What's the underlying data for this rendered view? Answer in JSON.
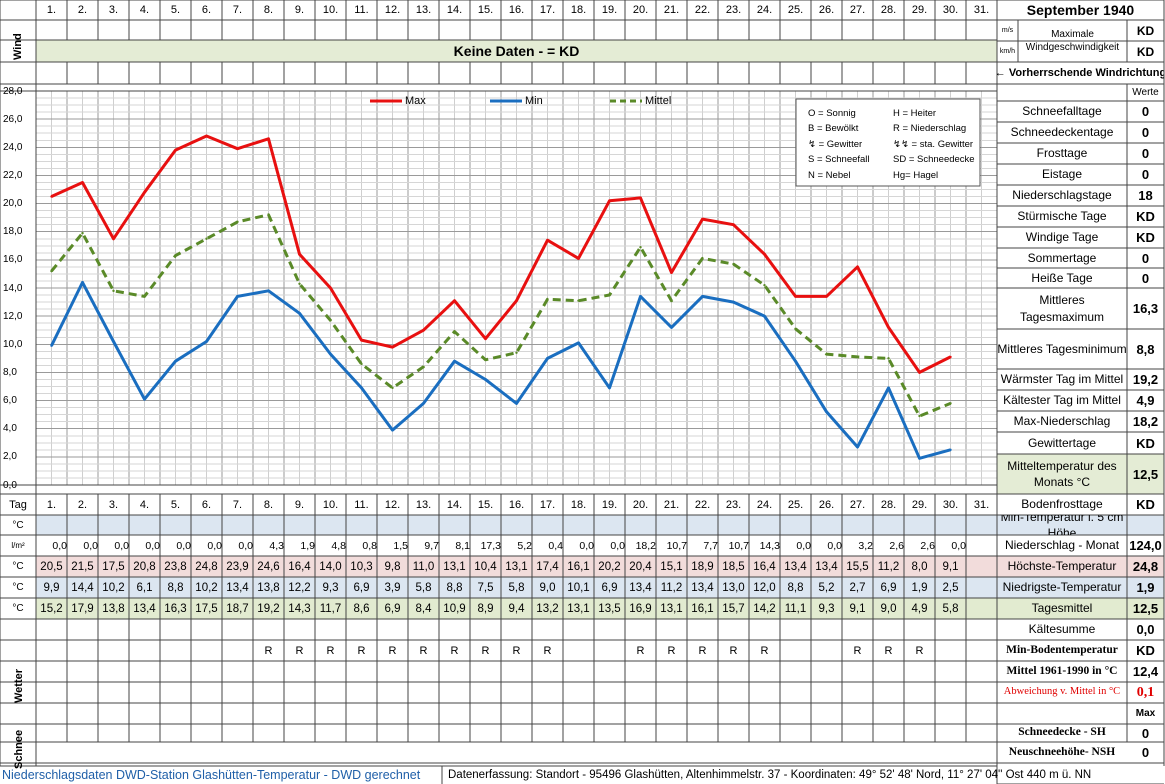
{
  "title": "September 1940",
  "days": [
    "1.",
    "2.",
    "3.",
    "4.",
    "5.",
    "6.",
    "7.",
    "8.",
    "9.",
    "10.",
    "11.",
    "12.",
    "13.",
    "14.",
    "15.",
    "16.",
    "17.",
    "18.",
    "19.",
    "20.",
    "21.",
    "22.",
    "23.",
    "24.",
    "25.",
    "26.",
    "27.",
    "28.",
    "29.",
    "30.",
    "31."
  ],
  "wind": {
    "label": "Wind",
    "unit_ms": "m/s",
    "unit_kmh": "km/h",
    "max_label": "Maximale Windgeschwindigkeit",
    "max_ms": "KD",
    "max_kmh": "KD",
    "no_data": "Keine Daten -  = KD",
    "direction_label": "← Vorherrschende Windrichtung"
  },
  "colors": {
    "max": "#e81010",
    "min": "#1a6ec0",
    "mittel": "#5a8a28",
    "band_blue": "#dce6f1",
    "band_green": "#e2ebd0",
    "band_red": "#f2dcdb"
  },
  "legend": {
    "max": "Max",
    "min": "Min",
    "mittel": "Mittel",
    "codes": [
      [
        "O = Sonnig",
        "H = Heiter"
      ],
      [
        "B = Bewölkt",
        "R = Niederschlag"
      ],
      [
        "= Gewitter",
        "= sta. Gewitter"
      ],
      [
        "S = Schneefall",
        "SD = Schneedecke"
      ],
      [
        "N = Nebel",
        "Hg= Hagel"
      ]
    ]
  },
  "chart_data": {
    "type": "line",
    "x": [
      1,
      2,
      3,
      4,
      5,
      6,
      7,
      8,
      9,
      10,
      11,
      12,
      13,
      14,
      15,
      16,
      17,
      18,
      19,
      20,
      21,
      22,
      23,
      24,
      25,
      26,
      27,
      28,
      29,
      30
    ],
    "series": [
      {
        "name": "Max",
        "values": [
          20.5,
          21.5,
          17.5,
          20.8,
          23.8,
          24.8,
          23.9,
          24.6,
          16.4,
          14.0,
          10.3,
          9.8,
          11.0,
          13.1,
          10.4,
          13.1,
          17.4,
          16.1,
          20.2,
          20.4,
          15.1,
          18.9,
          18.5,
          16.4,
          13.4,
          13.4,
          15.5,
          11.2,
          8.0,
          9.1
        ]
      },
      {
        "name": "Min",
        "values": [
          9.9,
          14.4,
          10.2,
          6.1,
          8.8,
          10.2,
          13.4,
          13.8,
          12.2,
          9.3,
          6.9,
          3.9,
          5.8,
          8.8,
          7.5,
          5.8,
          9.0,
          10.1,
          6.9,
          13.4,
          11.2,
          13.4,
          13.0,
          12.0,
          8.8,
          5.2,
          2.7,
          6.9,
          1.9,
          2.5
        ]
      },
      {
        "name": "Mittel",
        "values": [
          15.2,
          17.9,
          13.8,
          13.4,
          16.3,
          17.5,
          18.7,
          19.2,
          14.3,
          11.7,
          8.6,
          6.9,
          8.4,
          10.9,
          8.9,
          9.4,
          13.2,
          13.1,
          13.5,
          16.9,
          13.1,
          16.1,
          15.7,
          14.2,
          11.1,
          9.3,
          9.1,
          9.0,
          4.9,
          5.8
        ]
      }
    ],
    "y_ticks": [
      "28,0",
      "26,0",
      "24,0",
      "22,0",
      "20,0",
      "18,0",
      "16,0",
      "14,0",
      "12,0",
      "10,0",
      "8,0",
      "6,0",
      "4,0",
      "2,0",
      "0,0"
    ],
    "ylim": [
      0,
      28
    ],
    "grid": true
  },
  "table": {
    "tag_label": "Tag",
    "unit_c": "°C",
    "unit_lm": "l/m²",
    "niederschlag": [
      "0,0",
      "0,0",
      "0,0",
      "0,0",
      "0,0",
      "0,0",
      "0,0",
      "4,3",
      "1,9",
      "4,8",
      "0,8",
      "1,5",
      "9,7",
      "8,1",
      "17,3",
      "5,2",
      "0,4",
      "0,0",
      "0,0",
      "18,2",
      "10,7",
      "7,7",
      "10,7",
      "14,3",
      "0,0",
      "0,0",
      "3,2",
      "2,6",
      "2,6",
      "0,0"
    ],
    "max": [
      "20,5",
      "21,5",
      "17,5",
      "20,8",
      "23,8",
      "24,8",
      "23,9",
      "24,6",
      "16,4",
      "14,0",
      "10,3",
      "9,8",
      "11,0",
      "13,1",
      "10,4",
      "13,1",
      "17,4",
      "16,1",
      "20,2",
      "20,4",
      "15,1",
      "18,9",
      "18,5",
      "16,4",
      "13,4",
      "13,4",
      "15,5",
      "11,2",
      "8,0",
      "9,1"
    ],
    "min": [
      "9,9",
      "14,4",
      "10,2",
      "6,1",
      "8,8",
      "10,2",
      "13,4",
      "13,8",
      "12,2",
      "9,3",
      "6,9",
      "3,9",
      "5,8",
      "8,8",
      "7,5",
      "5,8",
      "9,0",
      "10,1",
      "6,9",
      "13,4",
      "11,2",
      "13,4",
      "13,0",
      "12,0",
      "8,8",
      "5,2",
      "2,7",
      "6,9",
      "1,9",
      "2,5"
    ],
    "mittel": [
      "15,2",
      "17,9",
      "13,8",
      "13,4",
      "16,3",
      "17,5",
      "18,7",
      "19,2",
      "14,3",
      "11,7",
      "8,6",
      "6,9",
      "8,4",
      "10,9",
      "8,9",
      "9,4",
      "13,2",
      "13,1",
      "13,5",
      "16,9",
      "13,1",
      "16,1",
      "15,7",
      "14,2",
      "11,1",
      "9,3",
      "9,1",
      "9,0",
      "4,9",
      "5,8"
    ],
    "wetter": [
      "",
      "",
      "",
      "",
      "",
      "",
      "",
      "R",
      "R",
      "R",
      "R",
      "R",
      "R",
      "R",
      "R",
      "R",
      "R",
      "",
      "",
      "R",
      "R",
      "R",
      "R",
      "R",
      "",
      "",
      "R",
      "R",
      "R",
      "",
      ""
    ],
    "wetter_label": "Wetter",
    "schnee_label": "Schnee"
  },
  "stats": {
    "werte_label": "Werte",
    "rows": [
      {
        "label": "Schneefalltage",
        "value": "0"
      },
      {
        "label": "Schneedeckentage",
        "value": "0"
      },
      {
        "label": "Frosttage",
        "value": "0"
      },
      {
        "label": "Eistage",
        "value": "0"
      },
      {
        "label": "Niederschlagstage",
        "value": "18"
      },
      {
        "label": "Stürmische Tage",
        "value": "KD"
      },
      {
        "label": "Windige Tage",
        "value": "KD"
      },
      {
        "label": "Sommertage",
        "value": "0"
      },
      {
        "label": "Heiße Tage",
        "value": "0"
      },
      {
        "label": "Mittleres Tagesmaximum",
        "value": "16,3"
      },
      {
        "label": "Mittleres Tagesminimum",
        "value": "8,8"
      },
      {
        "label": "Wärmster Tag im Mittel",
        "value": "19,2"
      },
      {
        "label": "Kältester Tag im Mittel",
        "value": "4,9"
      },
      {
        "label": "Max-Niederschlag",
        "value": "18,2"
      },
      {
        "label": "Gewittertage",
        "value": "KD"
      },
      {
        "label": "Mitteltemperatur des Monats °C",
        "value": "12,5"
      },
      {
        "label": "Bodenfrosttage",
        "value": "KD"
      },
      {
        "label": "Min-Temperatur i. 5 cm Höhe",
        "value": ""
      },
      {
        "label": "Niederschlag - Monat",
        "value": "124,0"
      },
      {
        "label": "Höchste-Temperatur",
        "value": "24,8"
      },
      {
        "label": "Niedrigste-Temperatur",
        "value": "1,9"
      },
      {
        "label": "Tagesmittel",
        "value": "12,5"
      },
      {
        "label": "Kältesumme",
        "value": "0,0"
      },
      {
        "label": "Min-Bodentemperatur",
        "value": "KD"
      },
      {
        "label": "Mittel 1961-1990 in °C",
        "value": "12,4"
      },
      {
        "label": "Abweichung v. Mittel in °C",
        "value": "0,1"
      },
      {
        "label": "",
        "value": "Max"
      },
      {
        "label": "Schneedecke -  SH",
        "value": "0"
      },
      {
        "label": "Neuschneehöhe- NSH",
        "value": "0"
      }
    ]
  },
  "footer": {
    "left": "Niederschlagsdaten DWD-Station Glashütten-Temperatur -  DWD gerechnet",
    "right": "Datenerfassung:  Standort -  95496  Glashütten, Altenhimmelstr. 37 - Koordinaten:  49° 52' 48' Nord,   11° 27' 04'' Ost   440 m ü. NN"
  }
}
